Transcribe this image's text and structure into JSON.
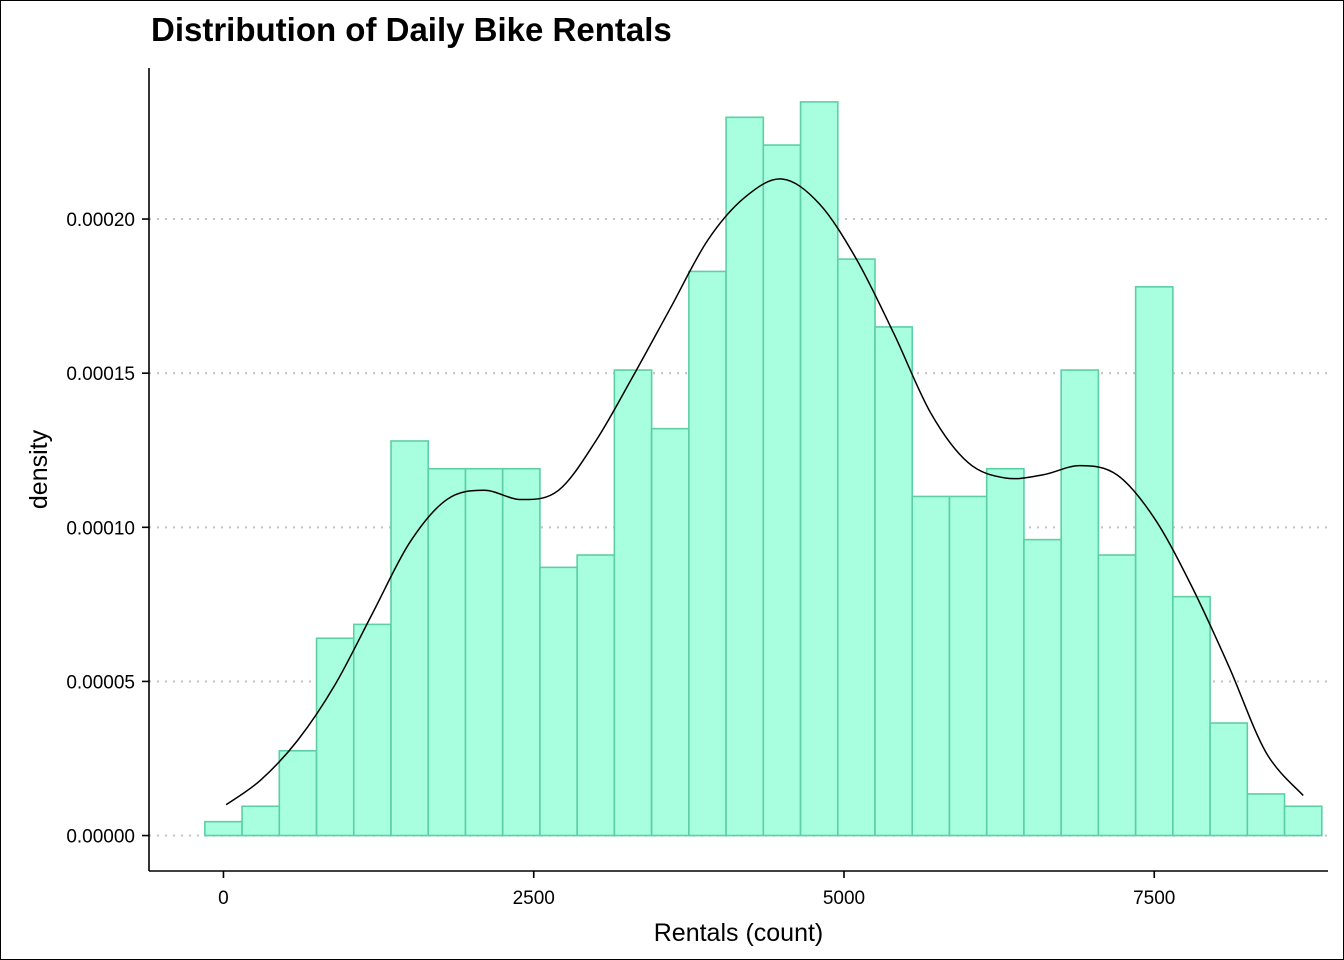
{
  "chart_data": {
    "type": "histogram",
    "title": "Distribution of Daily Bike Rentals",
    "xlabel": "Rentals (count)",
    "ylabel": "density",
    "xlim": [
      -600,
      8900
    ],
    "ylim": [
      -1.15e-05,
      0.000249
    ],
    "x_ticks": [
      {
        "value": 0,
        "label": "0"
      },
      {
        "value": 2500,
        "label": "2500"
      },
      {
        "value": 5000,
        "label": "5000"
      },
      {
        "value": 7500,
        "label": "7500"
      }
    ],
    "y_ticks": [
      {
        "value": 0,
        "label": "0.00000"
      },
      {
        "value": 5e-05,
        "label": "0.00005"
      },
      {
        "value": 0.0001,
        "label": "0.00010"
      },
      {
        "value": 0.00015,
        "label": "0.00015"
      },
      {
        "value": 0.0002,
        "label": "0.00020"
      }
    ],
    "grid": "horizontal-dotted",
    "bins": {
      "start": -150,
      "width": 300,
      "values": [
        4.5e-06,
        9.5e-06,
        2.75e-05,
        6.4e-05,
        6.85e-05,
        0.000128,
        0.000119,
        0.000119,
        0.000119,
        8.7e-05,
        9.1e-05,
        0.000151,
        0.000132,
        0.000183,
        0.000233,
        0.000224,
        0.000238,
        0.000187,
        0.000165,
        0.00011,
        0.00011,
        0.000119,
        9.6e-05,
        0.000151,
        9.1e-05,
        0.000178,
        7.75e-05,
        3.65e-05,
        1.35e-05,
        9.5e-06
      ]
    },
    "density_curve": {
      "x": [
        22,
        300,
        600,
        900,
        1200,
        1500,
        1800,
        2100,
        2400,
        2700,
        3000,
        3300,
        3600,
        3900,
        4200,
        4500,
        4800,
        5100,
        5400,
        5700,
        6000,
        6300,
        6600,
        6900,
        7200,
        7500,
        7800,
        8100,
        8400,
        8700
      ],
      "y": [
        1e-05,
        1.8e-05,
        3.1e-05,
        4.9e-05,
        7.2e-05,
        9.5e-05,
        0.000109,
        0.000112,
        0.000109,
        0.000112,
        0.000128,
        0.000149,
        0.000171,
        0.000193,
        0.000207,
        0.000213,
        0.000205,
        0.000187,
        0.000163,
        0.000137,
        0.000121,
        0.000116,
        0.000117,
        0.00012,
        0.000117,
        0.000103,
        8.1e-05,
        5.5e-05,
        2.7e-05,
        1.3e-05
      ]
    },
    "colors": {
      "bar_fill": "#a7ffe0",
      "bar_stroke": "#5ccfa4",
      "curve": "#000000",
      "grid": "#c4c4c4"
    }
  }
}
